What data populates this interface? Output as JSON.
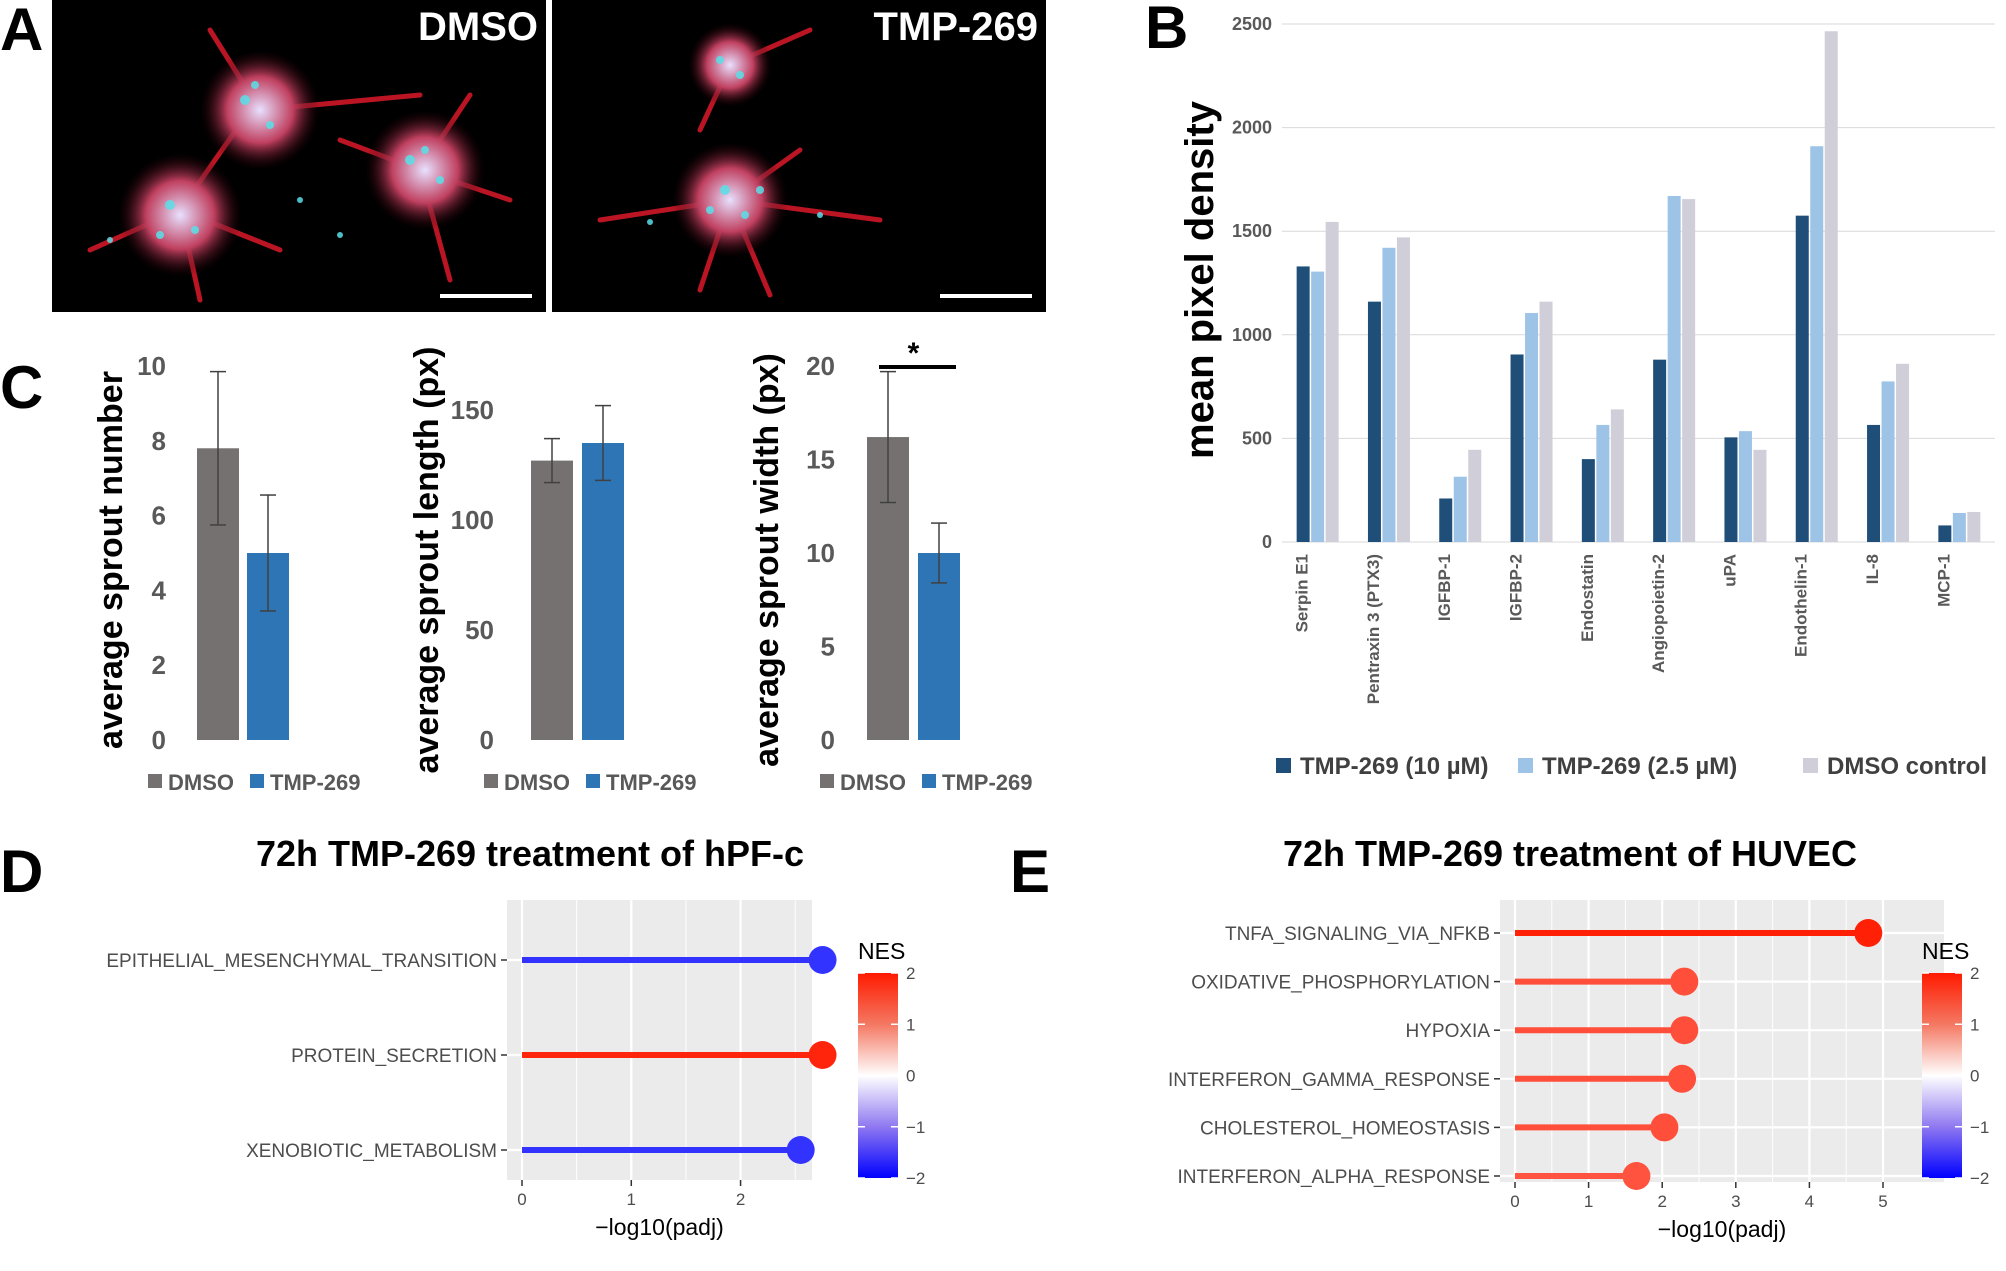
{
  "panel_labels": {
    "a": "A",
    "b": "B",
    "c": "C",
    "d": "D",
    "e": "E"
  },
  "micrographs": {
    "left_label": "DMSO",
    "right_label": "TMP-269"
  },
  "colors": {
    "dmso_bar": "#767171",
    "tmp_bar": "#2e75b6",
    "b_s1": "#1f4e79",
    "b_s2": "#9dc3e6",
    "b_s3": "#d0ced9",
    "gsea_bg": "#ebebeb",
    "nes_high": "#f8311b",
    "nes_low": "#5b3cf5"
  },
  "chart_data": [
    {
      "id": "sprout_number",
      "type": "bar",
      "ylabel": "average sprout number",
      "ylim": [
        0,
        10
      ],
      "yticks": [
        "0",
        "2",
        "4",
        "6",
        "8",
        "10"
      ],
      "categories": [
        "DMSO",
        "TMP-269"
      ],
      "values": [
        7.8,
        5.0
      ],
      "errors": [
        2.05,
        1.55
      ],
      "legend": [
        "DMSO",
        "TMP-269"
      ]
    },
    {
      "id": "sprout_length",
      "type": "bar",
      "ylabel": "average sprout length (px)",
      "ylim": [
        0,
        150
      ],
      "yticks": [
        "0",
        "50",
        "100",
        "150"
      ],
      "categories": [
        "DMSO",
        "TMP-269"
      ],
      "values": [
        127,
        135
      ],
      "errors": [
        10,
        17
      ],
      "legend": [
        "DMSO",
        "TMP-269"
      ]
    },
    {
      "id": "sprout_width",
      "type": "bar",
      "ylabel": "average sprout width (px)",
      "ylim": [
        0,
        20
      ],
      "yticks": [
        "0",
        "5",
        "10",
        "15",
        "20"
      ],
      "categories": [
        "DMSO",
        "TMP-269"
      ],
      "values": [
        16.2,
        10.0
      ],
      "errors": [
        3.5,
        1.6
      ],
      "significance": "*",
      "legend": [
        "DMSO",
        "TMP-269"
      ]
    },
    {
      "id": "pixel_density",
      "type": "bar",
      "ylabel": "mean pixel density",
      "ylim": [
        0,
        2500
      ],
      "yticks": [
        "0",
        "500",
        "1000",
        "1500",
        "2000",
        "2500"
      ],
      "categories": [
        "Serpin E1",
        "Pentraxin 3 (PTX3)",
        "IGFBP-1",
        "IGFBP-2",
        "Endostatin",
        "Angiopoietin-2",
        "uPA",
        "Endothelin-1",
        "IL-8",
        "MCP-1"
      ],
      "series": [
        {
          "name": "TMP-269 (10 µM)",
          "values": [
            1330,
            1160,
            210,
            905,
            400,
            880,
            505,
            1575,
            565,
            80
          ]
        },
        {
          "name": "TMP-269 (2.5 µM)",
          "values": [
            1305,
            1420,
            315,
            1105,
            565,
            1670,
            535,
            1910,
            775,
            140
          ]
        },
        {
          "name": "DMSO control",
          "values": [
            1545,
            1470,
            445,
            1160,
            640,
            1655,
            445,
            2465,
            860,
            145
          ]
        }
      ],
      "legend_position": "bottom"
    },
    {
      "id": "gsea_hpfc",
      "type": "lollipop",
      "title": "72h TMP-269 treatment of hPF-c",
      "xlabel": "−log10(padj)",
      "xlim": [
        0,
        2.8
      ],
      "xticks": [
        "0",
        "1",
        "2"
      ],
      "terms": [
        "EPITHELIAL_MESENCHYMAL_TRANSITION",
        "PROTEIN_SECRETION",
        "XENOBIOTIC_METABOLISM"
      ],
      "x": [
        2.75,
        2.75,
        2.55
      ],
      "nes": [
        -1.6,
        1.9,
        -1.6
      ],
      "legend_title": "NES",
      "legend_ticks": [
        "2",
        "1",
        "0",
        "−1",
        "−2"
      ]
    },
    {
      "id": "gsea_huvec",
      "type": "lollipop",
      "title": "72h TMP-269 treatment of HUVEC",
      "xlabel": "−log10(padj)",
      "xlim": [
        0,
        5
      ],
      "xticks": [
        "0",
        "1",
        "2",
        "3",
        "4",
        "5"
      ],
      "terms": [
        "TNFA_SIGNALING_VIA_NFKB",
        "OXIDATIVE_PHOSPHORYLATION",
        "HYPOXIA",
        "INTERFERON_GAMMA_RESPONSE",
        "CHOLESTEROL_HOMEOSTASIS",
        "INTERFERON_ALPHA_RESPONSE"
      ],
      "x": [
        4.8,
        2.3,
        2.3,
        2.27,
        2.03,
        1.65
      ],
      "nes": [
        1.95,
        1.55,
        1.55,
        1.55,
        1.55,
        1.5
      ],
      "legend_title": "NES",
      "legend_ticks": [
        "2",
        "1",
        "0",
        "−1",
        "−2"
      ]
    }
  ]
}
